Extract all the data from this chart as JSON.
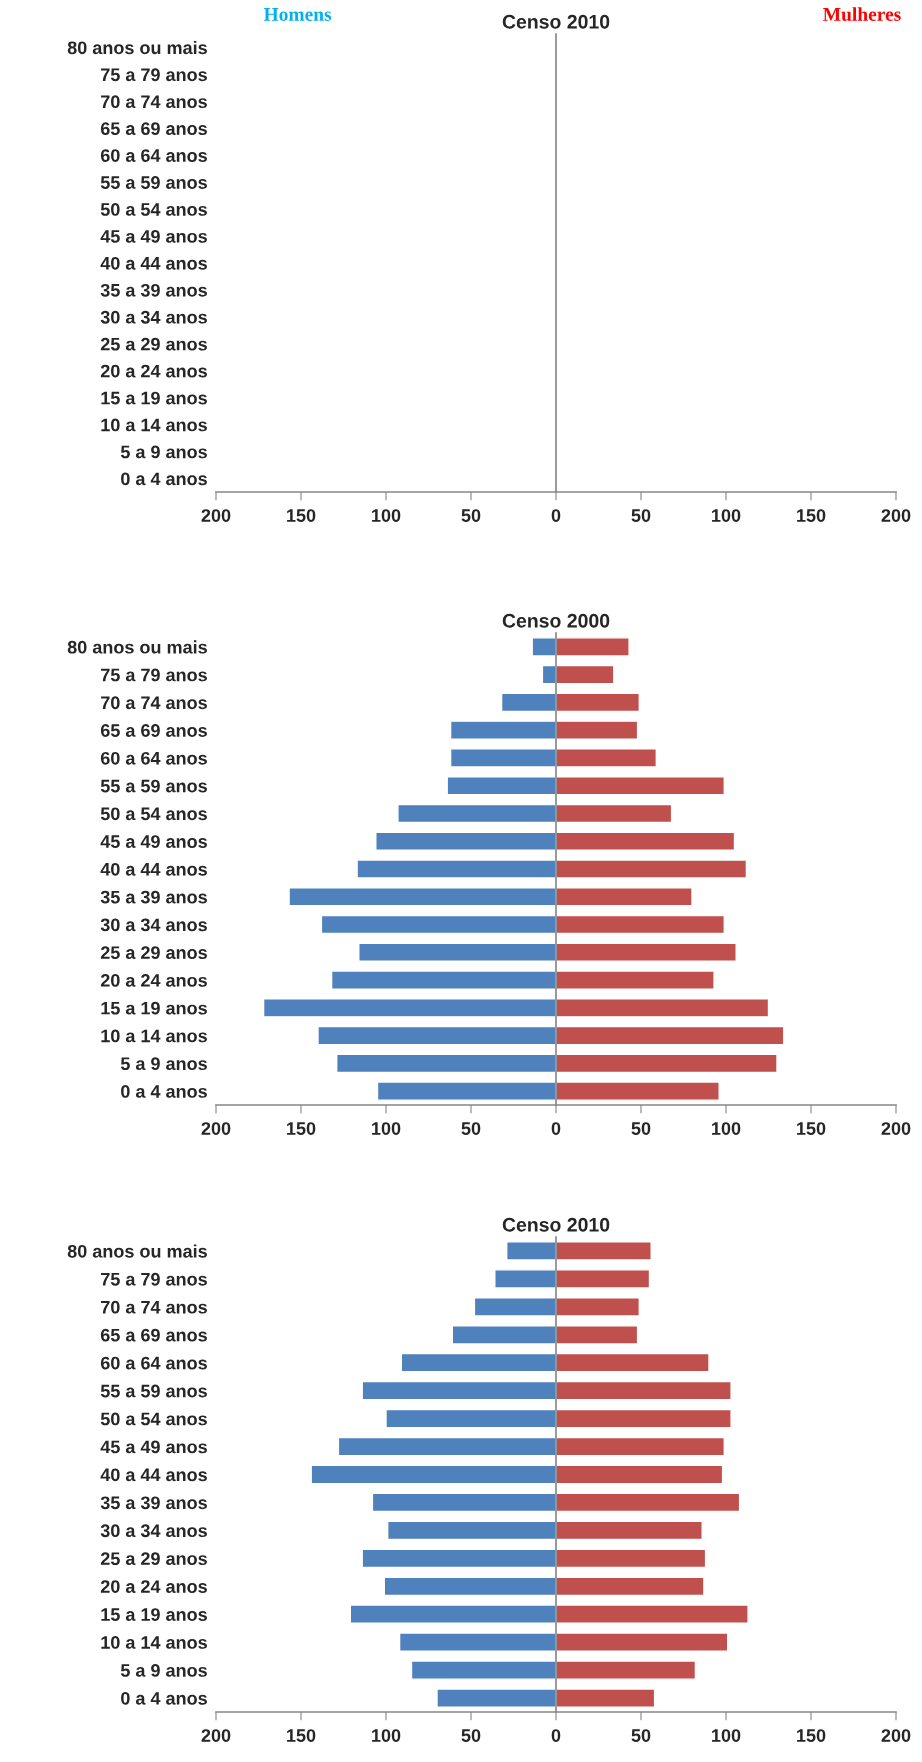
{
  "chart_data": [
    {
      "type": "bar",
      "orientation": "horizontal",
      "title": "Censo 2010",
      "categories": [
        "80 anos ou mais",
        "75 a 79 anos",
        "70 a 74 anos",
        "65 a 69 anos",
        "60 a 64 anos",
        "55 a 59 anos",
        "50 a 54 anos",
        "45 a 49 anos",
        "40 a 44 anos",
        "35 a 39 anos",
        "30 a 34 anos",
        "25 a 29 anos",
        "20 a 24 anos",
        "15 a 19 anos",
        "10 a 14 anos",
        "5 a 9 anos",
        "0 a 4 anos"
      ],
      "series": [
        {
          "name": "Homens",
          "color": "#00b0f0",
          "values": [
            null,
            null,
            null,
            null,
            null,
            null,
            null,
            null,
            null,
            null,
            null,
            null,
            null,
            null,
            null,
            null,
            null
          ]
        },
        {
          "name": "Mulheres",
          "color": "#ff0000",
          "values": [
            null,
            null,
            null,
            null,
            null,
            null,
            null,
            null,
            null,
            null,
            null,
            null,
            null,
            null,
            null,
            null,
            null
          ]
        }
      ],
      "xlim": [
        -200,
        200
      ],
      "xticks": [
        {
          "value": -200,
          "label": "200"
        },
        {
          "value": -150,
          "label": "150"
        },
        {
          "value": -100,
          "label": "100"
        },
        {
          "value": -50,
          "label": "50"
        },
        0,
        50,
        100,
        150,
        200
      ],
      "legend": false
    },
    {
      "type": "bar",
      "orientation": "horizontal",
      "stacked": true,
      "title": "Censo 2000",
      "categories": [
        "80 anos ou mais",
        "75 a 79 anos",
        "70 a 74 anos",
        "65 a 69 anos",
        "60 a 64 anos",
        "55 a 59 anos",
        "50 a 54 anos",
        "45 a 49 anos",
        "40 a 44 anos",
        "35 a 39 anos",
        "30 a 34 anos",
        "25 a 29 anos",
        "20 a 24 anos",
        "15 a 19 anos",
        "10 a 14 anos",
        "5 a 9 anos",
        "0 a 4 anos"
      ],
      "series": [
        {
          "color": "#4f81bd",
          "values": [
            -14,
            -8,
            -32,
            -62,
            -62,
            -64,
            -93,
            -106,
            -117,
            -157,
            -138,
            -116,
            -132,
            -172,
            -140,
            -129,
            -105
          ]
        },
        {
          "color": "#c0504d",
          "values": [
            43,
            34,
            49,
            48,
            59,
            99,
            68,
            105,
            112,
            80,
            99,
            106,
            93,
            125,
            134,
            130,
            96
          ]
        }
      ],
      "xlim": [
        -200,
        200
      ],
      "xticks": [
        {
          "value": -200,
          "label": "200"
        },
        {
          "value": -150,
          "label": "150"
        },
        {
          "value": -100,
          "label": "100"
        },
        {
          "value": -50,
          "label": "50"
        },
        0,
        50,
        100,
        150,
        200
      ],
      "legend": false
    },
    {
      "type": "bar",
      "orientation": "horizontal",
      "stacked": true,
      "title": "Censo 2010",
      "categories": [
        "80 anos ou mais",
        "75 a 79 anos",
        "70 a 74 anos",
        "65 a 69 anos",
        "60 a 64 anos",
        "55 a 59 anos",
        "50 a 54 anos",
        "45 a 49 anos",
        "40 a 44 anos",
        "35 a 39 anos",
        "30 a 34 anos",
        "25 a 29 anos",
        "20 a 24 anos",
        "15 a 19 anos",
        "10 a 14 anos",
        "5 a 9 anos",
        "0 a 4 anos"
      ],
      "series": [
        {
          "color": "#4f81bd",
          "values": [
            -29,
            -36,
            -48,
            -61,
            -91,
            -114,
            -100,
            -128,
            -144,
            -108,
            -99,
            -114,
            -101,
            -121,
            -92,
            -85,
            -70
          ]
        },
        {
          "color": "#c0504d",
          "values": [
            56,
            55,
            49,
            48,
            90,
            103,
            103,
            99,
            98,
            108,
            86,
            88,
            87,
            113,
            101,
            82,
            58
          ]
        }
      ],
      "xlim": [
        -200,
        200
      ],
      "xticks": [
        {
          "value": -200,
          "label": "200"
        },
        {
          "value": -150,
          "label": "150"
        },
        {
          "value": -100,
          "label": "100"
        },
        {
          "value": -50,
          "label": "50"
        },
        0,
        50,
        100,
        150,
        200
      ],
      "legend": false
    }
  ]
}
